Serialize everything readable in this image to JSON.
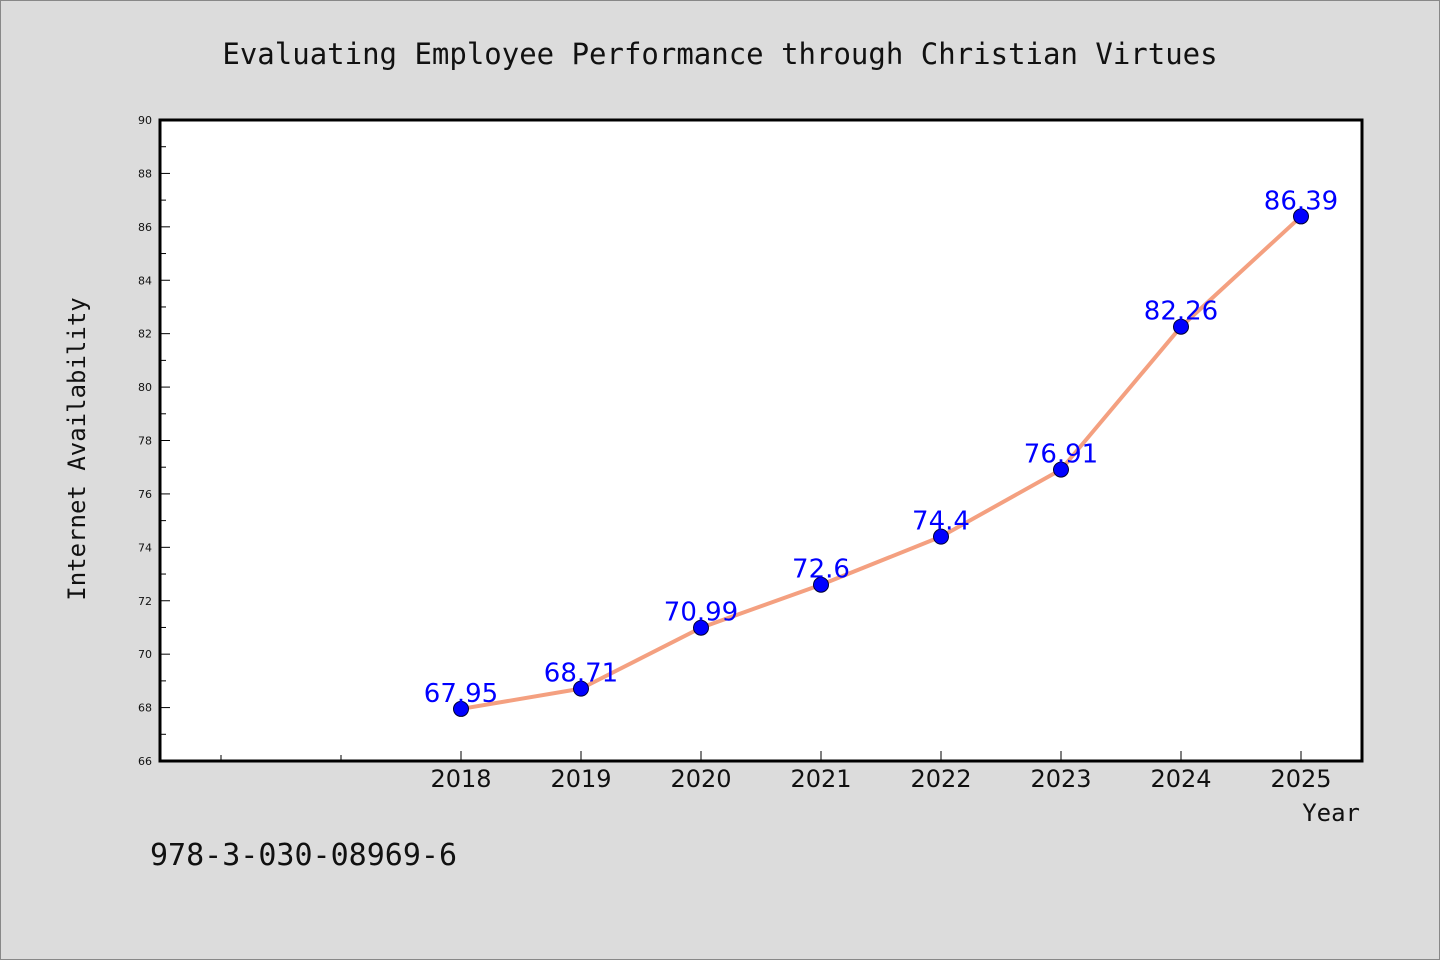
{
  "chart_data": {
    "type": "line",
    "title": "Evaluating Employee Performance through Christian Virtues",
    "xlabel": "Year",
    "ylabel": "Internet Availability",
    "categories": [
      "2018",
      "2019",
      "2020",
      "2021",
      "2022",
      "2023",
      "2024",
      "2025"
    ],
    "x_axis_extra_slots_before": 2,
    "series": [
      {
        "values": [
          67.95,
          68.71,
          70.99,
          72.6,
          74.4,
          76.91,
          82.26,
          86.39
        ],
        "labels": [
          "67.95",
          "68.71",
          "70.99",
          "72.6",
          "74.4",
          "76.91",
          "82.26",
          "86.39"
        ]
      }
    ],
    "ylim": [
      66,
      90
    ],
    "yticks": [
      "66",
      "68",
      "70",
      "72",
      "74",
      "76",
      "78",
      "80",
      "82",
      "84",
      "86",
      "88",
      "90"
    ],
    "grid": false,
    "legend": "none",
    "colors": {
      "line": "#f4a080",
      "marker": "#0000ff",
      "label": "#0000ff",
      "background": "#dcdcdc",
      "plot_background": "#ffffff"
    }
  },
  "footer": {
    "isbn": "978-3-030-08969-6"
  }
}
